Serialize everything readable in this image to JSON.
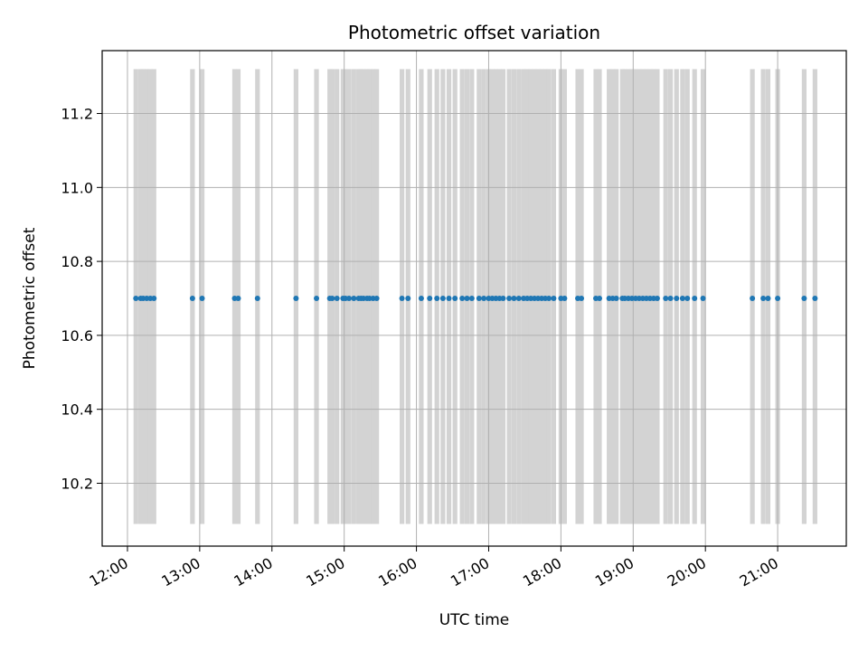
{
  "chart_data": {
    "type": "scatter",
    "title": "Photometric offset variation",
    "xlabel": "UTC time",
    "ylabel": "Photometric offset",
    "x_tick_labels": [
      "12:00",
      "13:00",
      "14:00",
      "15:00",
      "16:00",
      "17:00",
      "18:00",
      "19:00",
      "20:00",
      "21:00"
    ],
    "y_tick_labels": [
      "10.2",
      "10.4",
      "10.6",
      "10.8",
      "11.0",
      "11.2"
    ],
    "xlim": [
      "11:39",
      "21:57"
    ],
    "ylim": [
      10.03,
      11.37
    ],
    "grid": true,
    "colors": {
      "points": "#1f77b4",
      "bands": "#d3d3d3",
      "grid": "#b0b0b0"
    },
    "bands": {
      "y_range": [
        10.09,
        11.32
      ],
      "times": [
        "12:07",
        "12:11",
        "12:13",
        "12:16",
        "12:19",
        "12:22",
        "12:54",
        "13:02",
        "13:29",
        "13:32",
        "13:48",
        "14:20",
        "14:37",
        "14:48",
        "14:50",
        "14:54",
        "14:59",
        "15:01",
        "15:04",
        "15:08",
        "15:12",
        "15:14",
        "15:16",
        "15:19",
        "15:21",
        "15:24",
        "15:27",
        "15:48",
        "15:53",
        "16:04",
        "16:11",
        "16:17",
        "16:22",
        "16:27",
        "16:32",
        "16:38",
        "16:42",
        "16:46",
        "16:52",
        "16:56",
        "17:00",
        "17:03",
        "17:06",
        "17:09",
        "17:12",
        "17:17",
        "17:21",
        "17:25",
        "17:29",
        "17:32",
        "17:35",
        "17:38",
        "17:41",
        "17:44",
        "17:47",
        "17:50",
        "17:54",
        "18:00",
        "18:03",
        "18:14",
        "18:17",
        "18:29",
        "18:32",
        "18:40",
        "18:43",
        "18:46",
        "18:51",
        "18:53",
        "18:56",
        "18:59",
        "19:02",
        "19:05",
        "19:08",
        "19:11",
        "19:14",
        "19:17",
        "19:20",
        "19:27",
        "19:31",
        "19:36",
        "19:41",
        "19:45",
        "19:51",
        "19:58",
        "20:39",
        "20:48",
        "20:52",
        "21:00",
        "21:22",
        "21:31"
      ]
    },
    "series": [
      {
        "y": 10.7,
        "x": [
          "12:07",
          "12:11",
          "12:13",
          "12:16",
          "12:19",
          "12:22",
          "12:54",
          "13:02",
          "13:29",
          "13:32",
          "13:48",
          "14:20",
          "14:37",
          "14:48",
          "14:50",
          "14:54",
          "14:59",
          "15:01",
          "15:04",
          "15:08",
          "15:12",
          "15:14",
          "15:16",
          "15:19",
          "15:21",
          "15:24",
          "15:27",
          "15:48",
          "15:53",
          "16:04",
          "16:11",
          "16:17",
          "16:22",
          "16:27",
          "16:32",
          "16:38",
          "16:42",
          "16:46",
          "16:52",
          "16:56",
          "17:00",
          "17:03",
          "17:06",
          "17:09",
          "17:12",
          "17:17",
          "17:21",
          "17:25",
          "17:29",
          "17:32",
          "17:35",
          "17:38",
          "17:41",
          "17:44",
          "17:47",
          "17:50",
          "17:54",
          "18:00",
          "18:03",
          "18:14",
          "18:17",
          "18:29",
          "18:32",
          "18:40",
          "18:43",
          "18:46",
          "18:51",
          "18:53",
          "18:56",
          "18:59",
          "19:02",
          "19:05",
          "19:08",
          "19:11",
          "19:14",
          "19:17",
          "19:20",
          "19:27",
          "19:31",
          "19:36",
          "19:41",
          "19:45",
          "19:51",
          "19:58",
          "20:39",
          "20:48",
          "20:52",
          "21:00",
          "21:22",
          "21:31"
        ]
      }
    ]
  }
}
